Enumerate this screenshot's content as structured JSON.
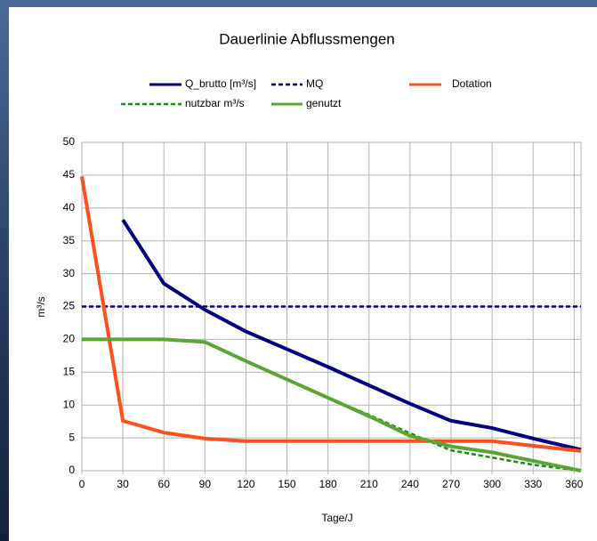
{
  "chart_data": {
    "type": "line",
    "title": "Dauerlinie Abflussmengen",
    "x_label": "Tage/J",
    "y_label": "m³/s",
    "x": [
      0,
      30,
      60,
      90,
      120,
      150,
      180,
      210,
      240,
      270,
      300,
      330,
      365
    ],
    "xlim": [
      0,
      365
    ],
    "xticks": [
      0,
      30,
      60,
      90,
      120,
      150,
      180,
      210,
      240,
      270,
      300,
      330,
      360
    ],
    "ylim": [
      0,
      50
    ],
    "yticks": [
      0,
      5,
      10,
      15,
      20,
      25,
      30,
      35,
      40,
      45,
      50
    ],
    "grid": true,
    "legend": "top",
    "series": [
      {
        "name": "Q_brutto [m³/s]",
        "color": "#000080",
        "dash": false,
        "values": [
          null,
          38.2,
          28.5,
          24.5,
          21.2,
          18.5,
          15.8,
          13.0,
          10.2,
          7.6,
          6.5,
          4.9,
          3.2
        ]
      },
      {
        "name": "MQ",
        "color": "#000080",
        "dash": true,
        "values": [
          25,
          25,
          25,
          25,
          25,
          25,
          25,
          25,
          25,
          25,
          25,
          25,
          25
        ]
      },
      {
        "name": "Dotation",
        "color": "#ff4f1f",
        "dash": false,
        "values": [
          44.8,
          7.6,
          5.8,
          4.9,
          4.5,
          4.5,
          4.5,
          4.5,
          4.5,
          4.5,
          4.5,
          3.8,
          3.0
        ]
      },
      {
        "name": "nutzbar m³/s",
        "color": "#1a8a1a",
        "dash": true,
        "values": [
          20,
          20,
          20,
          19.6,
          16.7,
          13.9,
          11.1,
          8.5,
          5.7,
          3.1,
          2.0,
          0.9,
          0
        ]
      },
      {
        "name": "genutzt",
        "color": "#5ba632",
        "dash": false,
        "values": [
          20,
          20,
          20,
          19.6,
          16.7,
          13.9,
          11.1,
          8.3,
          5.3,
          3.7,
          2.8,
          1.5,
          0
        ]
      }
    ]
  }
}
